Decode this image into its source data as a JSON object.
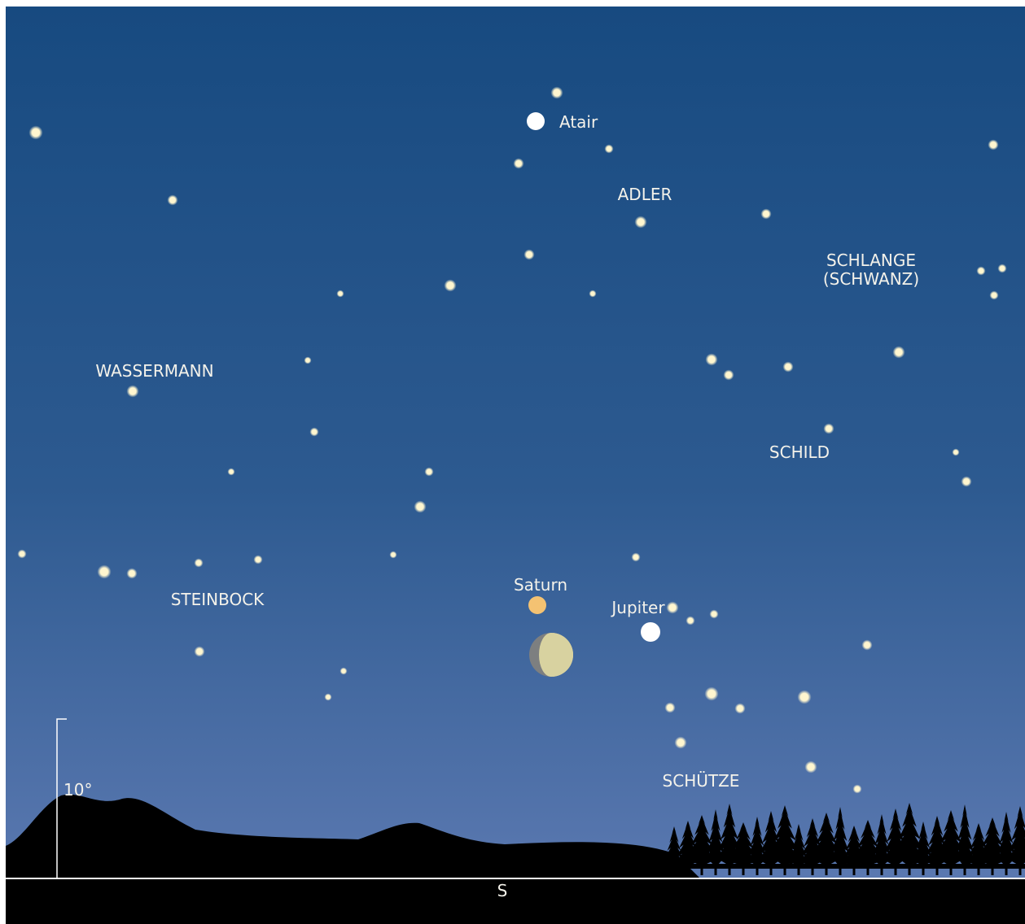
{
  "sky_labels": {
    "atair": "Atair",
    "adler": "ADLER",
    "schlange": "SCHLANGE",
    "schwanz": "(SCHWANZ)",
    "wassermann": "WASSERMANN",
    "schild": "SCHILD",
    "saturn": "Saturn",
    "jupiter": "Jupiter",
    "steinbock": "STEINBOCK",
    "schuetze": "SCHÜTZE"
  },
  "scale_label": "10°",
  "direction": "S"
}
